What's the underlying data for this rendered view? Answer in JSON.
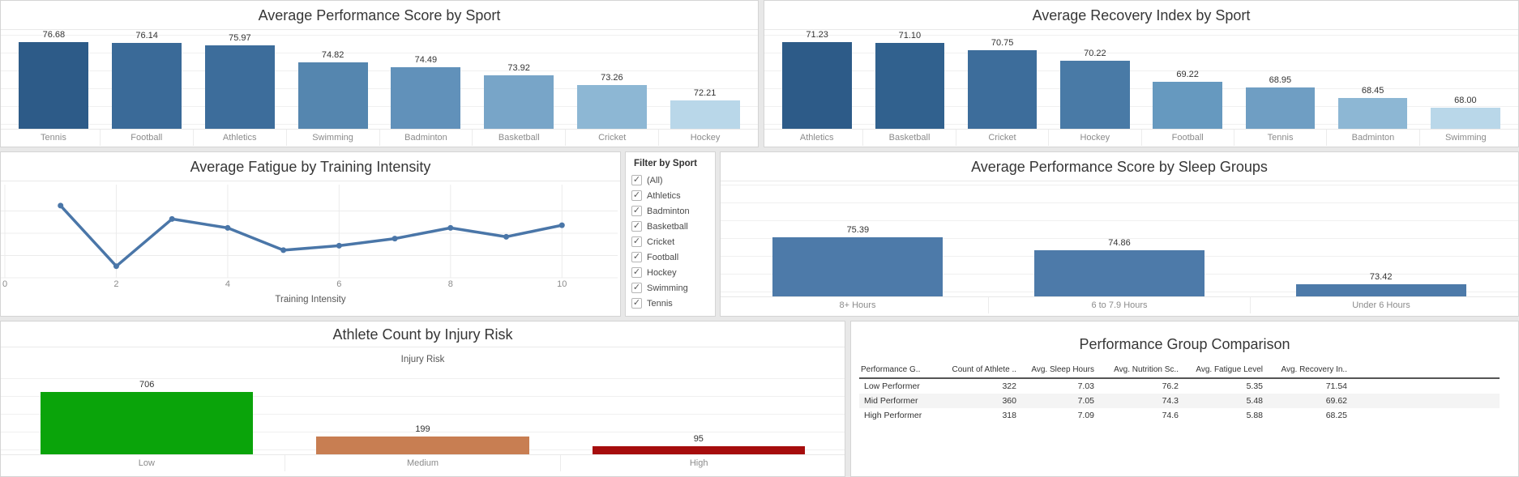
{
  "chart_data": [
    {
      "id": "performance_by_sport",
      "type": "bar",
      "title": "Average Performance Score by Sport",
      "categories": [
        "Tennis",
        "Football",
        "Athletics",
        "Swimming",
        "Badminton",
        "Basketball",
        "Cricket",
        "Hockey"
      ],
      "values": [
        76.68,
        76.14,
        75.97,
        74.82,
        74.49,
        73.92,
        73.26,
        72.21
      ],
      "decimals": 2,
      "ylim": [
        70.3,
        77.0
      ],
      "bar_colors": [
        "#2d5b88",
        "#3a6a98",
        "#3d6d9b",
        "#5586af",
        "#6191ba",
        "#78a5c8",
        "#8db7d4",
        "#b9d7e9"
      ]
    },
    {
      "id": "recovery_by_sport",
      "type": "bar",
      "title": "Average Recovery Index by Sport",
      "categories": [
        "Athletics",
        "Basketball",
        "Cricket",
        "Hockey",
        "Football",
        "Tennis",
        "Badminton",
        "Swimming"
      ],
      "values": [
        71.23,
        71.1,
        70.75,
        70.22,
        69.22,
        68.95,
        68.45,
        68.0
      ],
      "decimals": 2,
      "ylim": [
        67.0,
        71.7
      ],
      "bar_colors": [
        "#2d5b88",
        "#31618e",
        "#3d6d9b",
        "#497aa6",
        "#6699bf",
        "#6f9ec3",
        "#8db7d4",
        "#b9d7e9"
      ]
    },
    {
      "id": "fatigue_by_training_intensity",
      "type": "line",
      "title": "Average Fatigue by Training Intensity",
      "xlabel": "Training Intensity",
      "x": [
        1,
        2,
        3,
        4,
        5,
        6,
        7,
        8,
        9,
        10
      ],
      "y": [
        5.81,
        5.13,
        5.66,
        5.56,
        5.31,
        5.36,
        5.44,
        5.56,
        5.46,
        5.59
      ],
      "xlim": [
        0,
        11
      ],
      "ylim": [
        5.0,
        6.0
      ],
      "x_ticks": [
        0,
        2,
        4,
        6,
        8,
        10
      ],
      "y_gridlines": [
        5.0,
        5.25,
        5.5,
        5.75
      ],
      "grid": true,
      "line_color": "#4a76a8"
    },
    {
      "id": "performance_by_sleep_groups",
      "type": "bar",
      "title": "Average Performance Score by Sleep Groups",
      "categories": [
        "8+ Hours",
        "6 to 7.9 Hours",
        "Under 6 Hours"
      ],
      "values": [
        75.39,
        74.86,
        73.42
      ],
      "decimals": 2,
      "ylim": [
        72.9,
        77.6
      ],
      "bar_color": "#4d7aa9"
    },
    {
      "id": "athlete_count_by_injury_risk",
      "type": "bar",
      "title": "Athlete Count by Injury Risk",
      "xlabel": "Injury Risk",
      "categories": [
        "Low",
        "Medium",
        "High"
      ],
      "values": [
        706,
        199,
        95
      ],
      "decimals": 0,
      "ylim": [
        0,
        900
      ],
      "bar_colors": [
        "#0aa40a",
        "#c87e52",
        "#a60d0d"
      ]
    },
    {
      "id": "performance_group_comparison",
      "type": "table",
      "title": "Performance Group Comparison",
      "columns": [
        "Performance G..",
        "Count of Athlete ..",
        "Avg. Sleep Hours",
        "Avg. Nutrition Sc..",
        "Avg. Fatigue Level",
        "Avg. Recovery In.."
      ],
      "rows": [
        [
          "Low Performer",
          "322",
          "7.03",
          "76.2",
          "5.35",
          "71.54"
        ],
        [
          "Mid Performer",
          "360",
          "7.05",
          "74.3",
          "5.48",
          "69.62"
        ],
        [
          "High Performer",
          "318",
          "7.09",
          "74.6",
          "5.88",
          "68.25"
        ]
      ]
    }
  ],
  "filter": {
    "title": "Filter by Sport",
    "options": [
      {
        "label": "(All)",
        "checked": true
      },
      {
        "label": "Athletics",
        "checked": true
      },
      {
        "label": "Badminton",
        "checked": true
      },
      {
        "label": "Basketball",
        "checked": true
      },
      {
        "label": "Cricket",
        "checked": true
      },
      {
        "label": "Football",
        "checked": true
      },
      {
        "label": "Hockey",
        "checked": true
      },
      {
        "label": "Swimming",
        "checked": true
      },
      {
        "label": "Tennis",
        "checked": true
      }
    ]
  },
  "colors": {
    "panel_background": "#ffffff",
    "page_background": "#e8e8e8",
    "low_risk_green": "#0aa40a",
    "medium_risk_copper": "#c87e52",
    "high_risk_red": "#a60d0d",
    "steel_blue": "#4d7aa9"
  }
}
